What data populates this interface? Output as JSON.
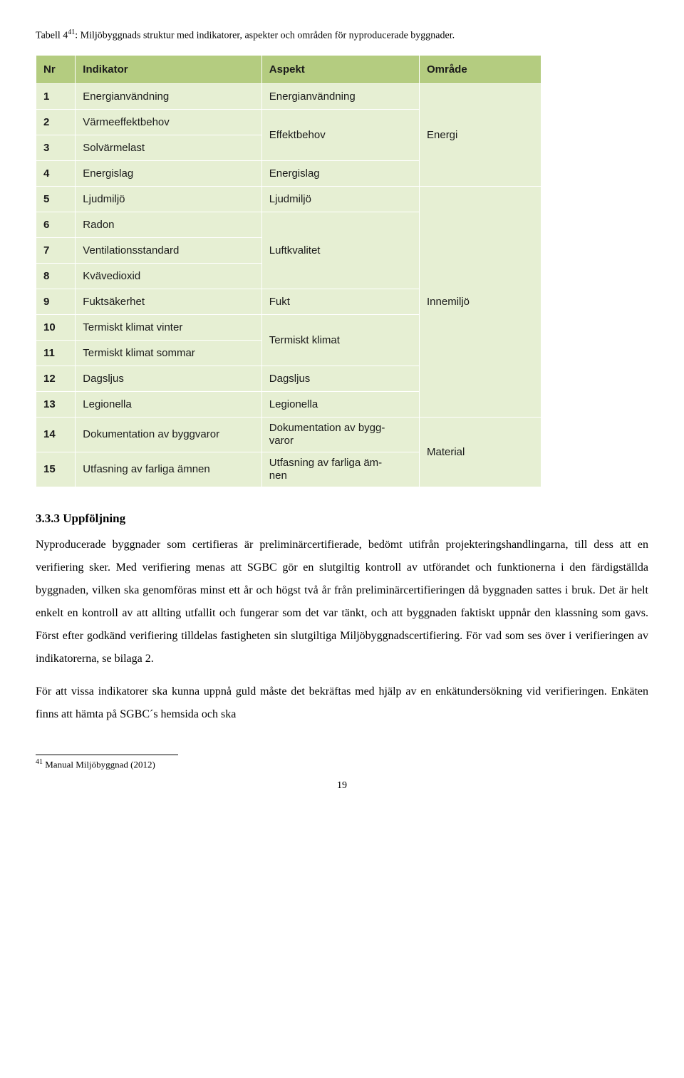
{
  "caption": {
    "prefix": "Tabell 4",
    "sup": "41",
    "rest": ": Miljöbyggnads struktur med indikatorer, aspekter och områden för nyproducerade byggnader."
  },
  "table": {
    "header_bg": "#b4cc80",
    "row_bg": "#e6efd3",
    "headers": {
      "nr": "Nr",
      "indikator": "Indikator",
      "aspekt": "Aspekt",
      "omrade": "Område"
    },
    "rows": [
      {
        "nr": "1",
        "ind": "Energianvändning",
        "asp": "Energianvändning",
        "asp_span": 1
      },
      {
        "nr": "2",
        "ind": "Värmeeffektbehov",
        "asp": "Effektbehov",
        "asp_span": 2
      },
      {
        "nr": "3",
        "ind": "Solvärmelast"
      },
      {
        "nr": "4",
        "ind": "Energislag",
        "asp": "Energislag",
        "asp_span": 1
      },
      {
        "nr": "5",
        "ind": "Ljudmiljö",
        "asp": "Ljudmiljö",
        "asp_span": 1
      },
      {
        "nr": "6",
        "ind": "Radon",
        "asp": "Luftkvalitet",
        "asp_span": 3
      },
      {
        "nr": "7",
        "ind": "Ventilationsstandard"
      },
      {
        "nr": "8",
        "ind": "Kvävedioxid"
      },
      {
        "nr": "9",
        "ind": "Fuktsäkerhet",
        "asp": "Fukt",
        "asp_span": 1
      },
      {
        "nr": "10",
        "ind": "Termiskt klimat vinter",
        "asp": "Termiskt klimat",
        "asp_span": 2
      },
      {
        "nr": "11",
        "ind": "Termiskt klimat sommar"
      },
      {
        "nr": "12",
        "ind": "Dagsljus",
        "asp": "Dagsljus",
        "asp_span": 1
      },
      {
        "nr": "13",
        "ind": "Legionella",
        "asp": "Legionella",
        "asp_span": 1
      },
      {
        "nr": "14",
        "ind": "Dokumentation av byggvaror",
        "asp": "Dokumentation av bygg-\nvaror",
        "asp_span": 1,
        "tall": true
      },
      {
        "nr": "15",
        "ind": "Utfasning av farliga ämnen",
        "asp": "Utfasning av farliga äm-\nnen",
        "asp_span": 1,
        "tall": true
      }
    ],
    "areas": [
      {
        "label": "Energi",
        "span": 4
      },
      {
        "label": "Innemiljö",
        "span": 9
      },
      {
        "label": "Material",
        "span": 2
      }
    ]
  },
  "heading": "3.3.3   Uppföljning",
  "paragraphs": [
    "Nyproducerade byggnader som certifieras är preliminärcertifierade, bedömt utifrån projekteringshandlingarna, till dess att en verifiering sker. Med verifiering menas att SGBC gör en slutgiltig kontroll av utförandet och funktionerna i den färdigställda byggnaden, vilken ska genomföras minst ett år och högst två år från preliminärcertifieringen då byggnaden sattes i bruk. Det är helt enkelt en kontroll av att allting utfallit och fungerar som det var tänkt, och att byggnaden faktiskt uppnår den klassning som gavs. Först efter godkänd verifiering tilldelas fastigheten sin slutgiltiga Miljöbyggnadscertifiering. För vad som ses över i verifieringen av indikatorerna, se bilaga 2.",
    "För att vissa indikatorer ska kunna uppnå guld måste det bekräftas med hjälp av en enkätundersökning vid verifieringen. Enkäten finns att hämta på SGBC´s hemsida och ska"
  ],
  "footnote": {
    "sup": "41",
    "text": " Manual Miljöbyggnad (2012)"
  },
  "page_number": "19"
}
